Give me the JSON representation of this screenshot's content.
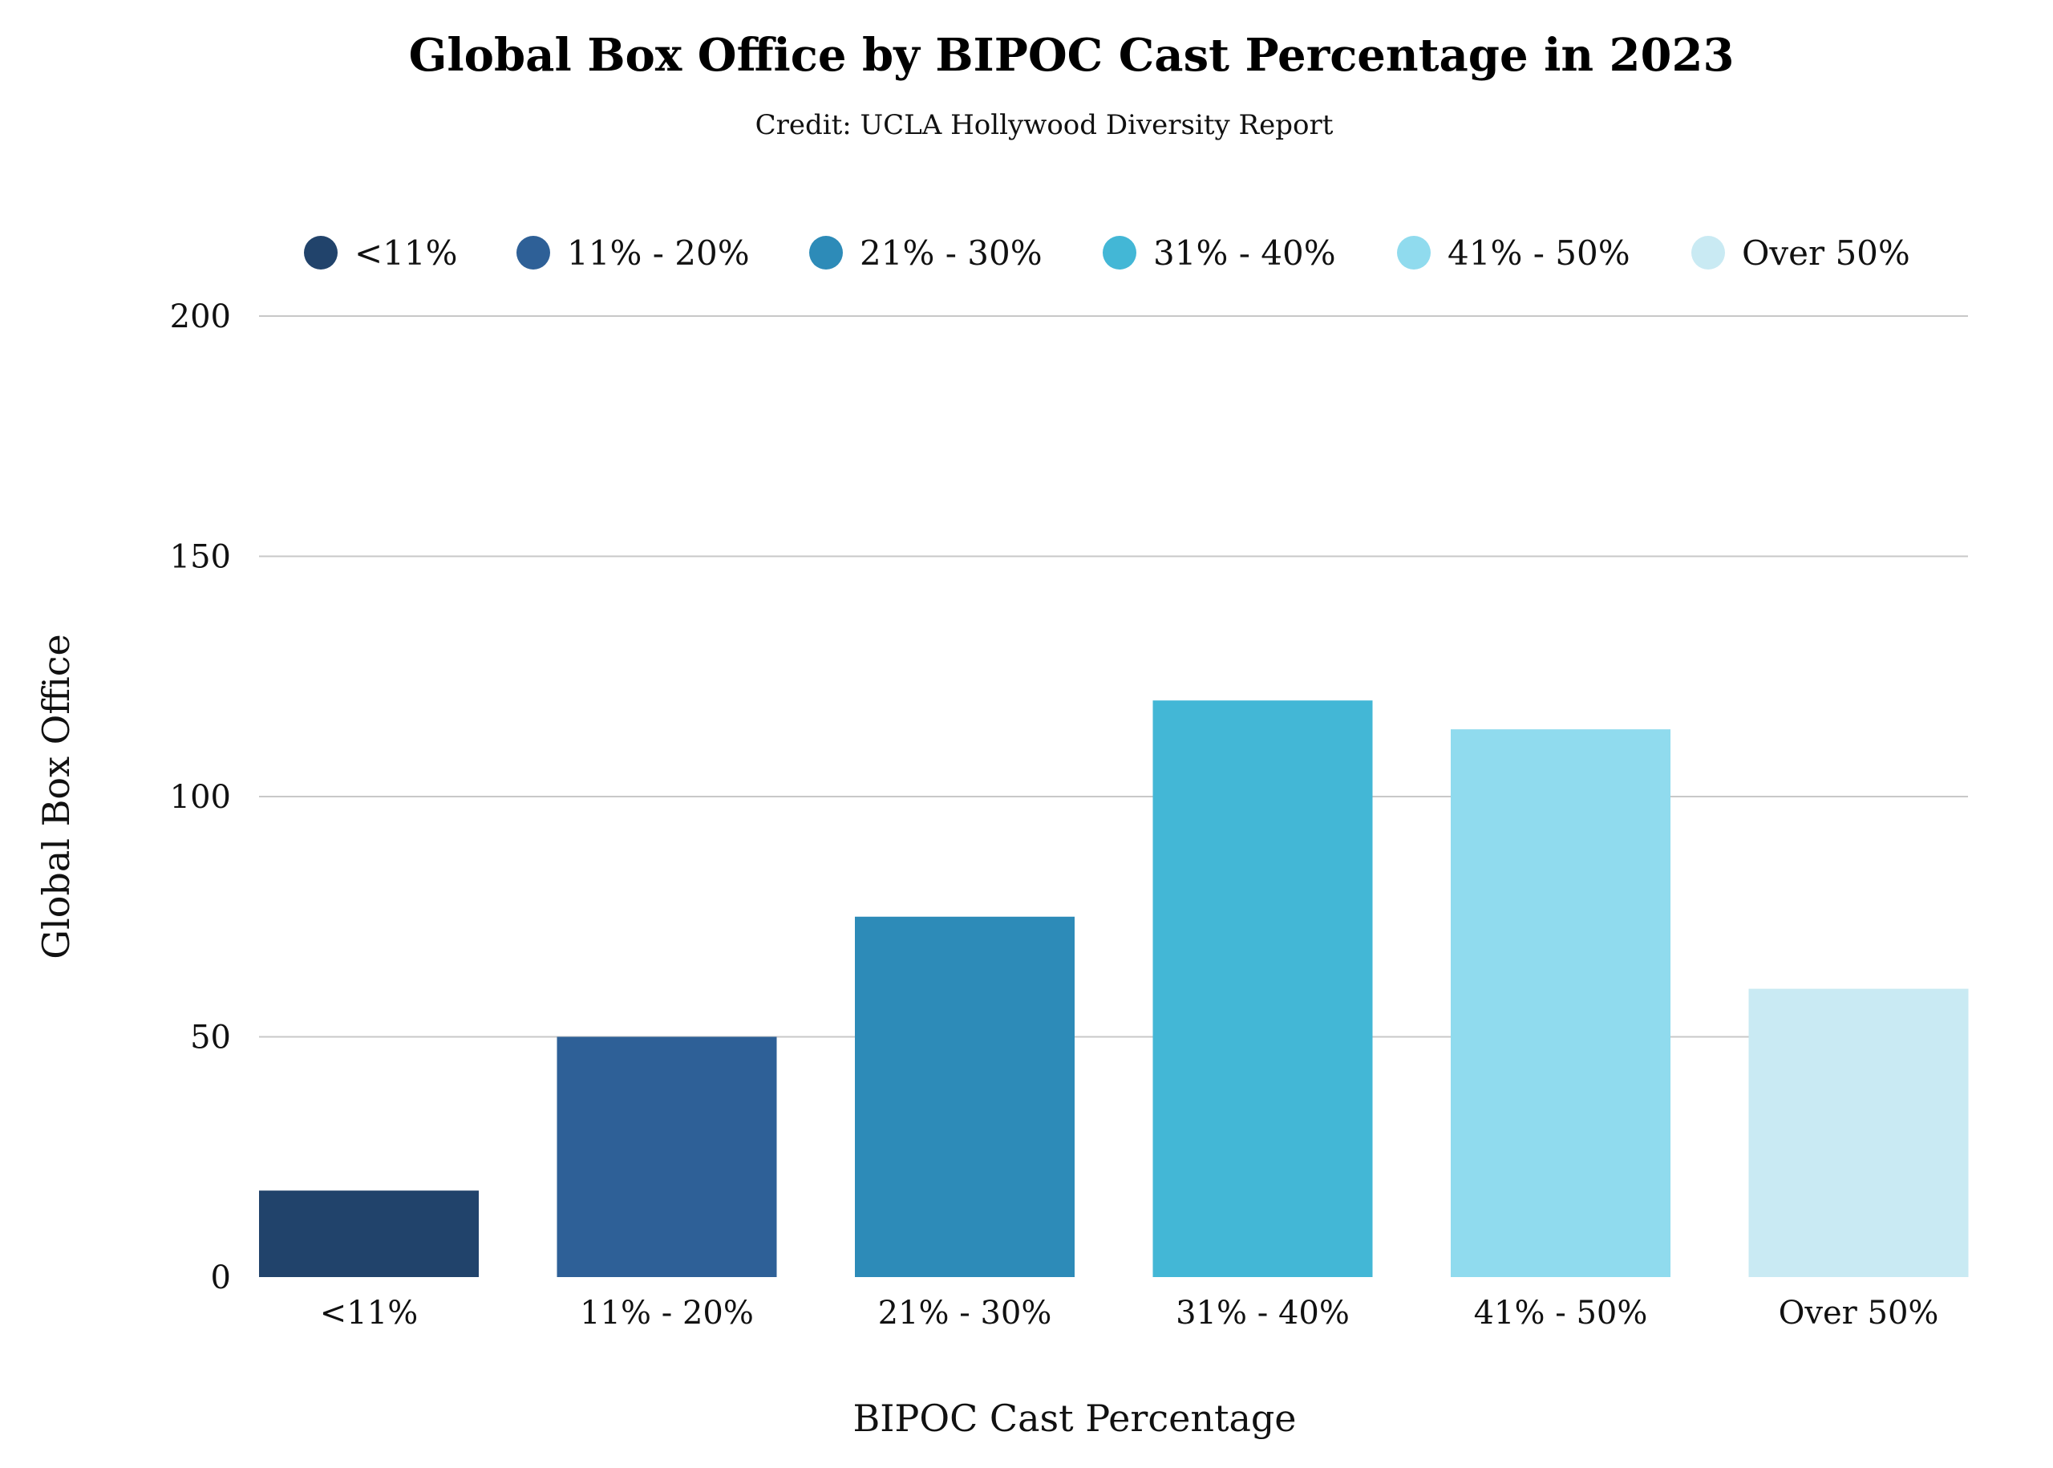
{
  "chart_data": {
    "type": "bar",
    "title": "Global Box Office by BIPOC Cast Percentage in 2023",
    "subtitle": "Credit: UCLA Hollywood Diversity Report",
    "xlabel": "BIPOC Cast Percentage",
    "ylabel": "Global Box Office",
    "categories": [
      "<11%",
      "11% - 20%",
      "21% - 30%",
      "31% - 40%",
      "41% - 50%",
      "Over 50%"
    ],
    "values": [
      18,
      50,
      75,
      120,
      114,
      60
    ],
    "colors": [
      "#21436b",
      "#2e6097",
      "#2d8bb8",
      "#43b7d6",
      "#90dbee",
      "#c9eaf3"
    ],
    "ylim": [
      0,
      200
    ],
    "yticks": [
      "0",
      "50",
      "100",
      "150",
      "200"
    ],
    "grid": true,
    "legend": {
      "placement": "top",
      "items": [
        "<11%",
        "11% - 20%",
        "21% - 30%",
        "31% - 40%",
        "41% - 50%",
        "Over 50%"
      ]
    }
  }
}
